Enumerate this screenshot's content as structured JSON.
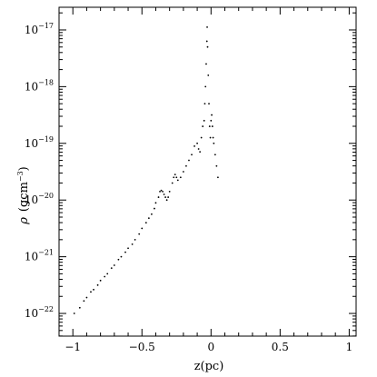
{
  "chart_data": {
    "type": "scatter",
    "xlabel": "z(pc)",
    "ylabel_symbol": "ρ",
    "ylabel_unit": "(gcm",
    "ylabel_unit_exp": "−3",
    "ylabel_unit_close": ")",
    "xlim": [
      -1.1,
      1.05
    ],
    "ylim_log10": [
      -22.4,
      -16.6
    ],
    "log_y": true,
    "grid": false,
    "x_ticks": [
      -1,
      -0.5,
      0,
      0.5,
      1
    ],
    "x_tick_labels": [
      "−1",
      "−0.5",
      "0",
      "0.5",
      "1"
    ],
    "y_ticks_log10": [
      -22,
      -21,
      -20,
      -19,
      -18,
      -17
    ],
    "y_tick_labels": [
      {
        "base": "10",
        "exp": "−22"
      },
      {
        "base": "10",
        "exp": "−21"
      },
      {
        "base": "10",
        "exp": "−20"
      },
      {
        "base": "10",
        "exp": "−19"
      },
      {
        "base": "10",
        "exp": "−18"
      },
      {
        "base": "10",
        "exp": "−17"
      }
    ],
    "series": [
      {
        "points": [
          [
            -0.99,
            -22.0
          ],
          [
            -0.95,
            -21.9
          ],
          [
            -0.92,
            -21.78
          ],
          [
            -0.9,
            -21.72
          ],
          [
            -0.87,
            -21.62
          ],
          [
            -0.85,
            -21.58
          ],
          [
            -0.82,
            -21.5
          ],
          [
            -0.8,
            -21.42
          ],
          [
            -0.77,
            -21.35
          ],
          [
            -0.75,
            -21.3
          ],
          [
            -0.72,
            -21.2
          ],
          [
            -0.7,
            -21.15
          ],
          [
            -0.67,
            -21.05
          ],
          [
            -0.65,
            -21.0
          ],
          [
            -0.62,
            -20.92
          ],
          [
            -0.6,
            -20.85
          ],
          [
            -0.57,
            -20.78
          ],
          [
            -0.55,
            -20.7
          ],
          [
            -0.52,
            -20.6
          ],
          [
            -0.5,
            -20.5
          ],
          [
            -0.47,
            -20.4
          ],
          [
            -0.45,
            -20.32
          ],
          [
            -0.43,
            -20.25
          ],
          [
            -0.41,
            -20.15
          ],
          [
            -0.4,
            -20.05
          ],
          [
            -0.38,
            -19.95
          ],
          [
            -0.37,
            -19.85
          ],
          [
            -0.36,
            -19.83
          ],
          [
            -0.35,
            -19.85
          ],
          [
            -0.34,
            -19.9
          ],
          [
            -0.33,
            -19.95
          ],
          [
            -0.32,
            -20.0
          ],
          [
            -0.31,
            -19.95
          ],
          [
            -0.3,
            -19.85
          ],
          [
            -0.28,
            -19.7
          ],
          [
            -0.27,
            -19.6
          ],
          [
            -0.26,
            -19.55
          ],
          [
            -0.25,
            -19.6
          ],
          [
            -0.24,
            -19.65
          ],
          [
            -0.22,
            -19.6
          ],
          [
            -0.2,
            -19.5
          ],
          [
            -0.18,
            -19.4
          ],
          [
            -0.16,
            -19.3
          ],
          [
            -0.14,
            -19.2
          ],
          [
            -0.12,
            -19.05
          ],
          [
            -0.1,
            -19.0
          ],
          [
            -0.09,
            -19.1
          ],
          [
            -0.08,
            -19.15
          ],
          [
            -0.07,
            -18.9
          ],
          [
            -0.06,
            -18.7
          ],
          [
            -0.05,
            -18.6
          ],
          [
            -0.045,
            -18.3
          ],
          [
            -0.04,
            -18.0
          ],
          [
            -0.035,
            -17.6
          ],
          [
            -0.03,
            -17.2
          ],
          [
            -0.028,
            -16.95
          ],
          [
            -0.025,
            -17.3
          ],
          [
            -0.02,
            -17.8
          ],
          [
            -0.015,
            -18.3
          ],
          [
            -0.01,
            -18.7
          ],
          [
            -0.005,
            -18.9
          ],
          [
            0.0,
            -18.6
          ],
          [
            0.005,
            -18.5
          ],
          [
            0.01,
            -18.7
          ],
          [
            0.015,
            -18.9
          ],
          [
            0.02,
            -19.0
          ],
          [
            0.03,
            -19.2
          ],
          [
            0.04,
            -19.4
          ],
          [
            0.05,
            -19.6
          ]
        ]
      }
    ]
  }
}
